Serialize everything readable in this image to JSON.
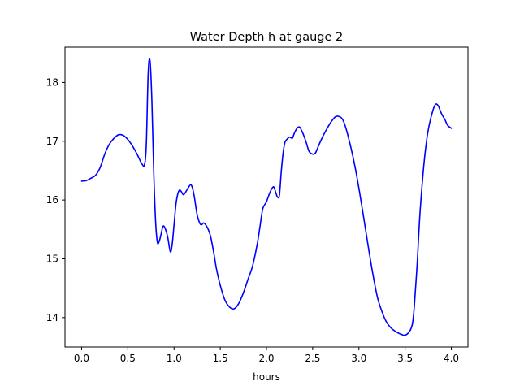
{
  "chart_data": {
    "type": "line",
    "title": "Water Depth h at gauge 2",
    "xlabel": "hours",
    "ylabel": "",
    "xlim": [
      -0.18,
      4.18
    ],
    "ylim": [
      13.5,
      18.6
    ],
    "xticks": [
      0.0,
      0.5,
      1.0,
      1.5,
      2.0,
      2.5,
      3.0,
      3.5,
      4.0
    ],
    "xtick_labels": [
      "0.0",
      "0.5",
      "1.0",
      "1.5",
      "2.0",
      "2.5",
      "3.0",
      "3.5",
      "4.0"
    ],
    "yticks": [
      14,
      15,
      16,
      17,
      18
    ],
    "ytick_labels": [
      "14",
      "15",
      "16",
      "17",
      "18"
    ],
    "grid": false,
    "legend": "none",
    "colors": {
      "line": "#0000ff",
      "axes": "#000000",
      "background": "#ffffff"
    },
    "series": [
      {
        "color": "#0000ff",
        "x": [
          0.0,
          0.05,
          0.1,
          0.15,
          0.2,
          0.25,
          0.3,
          0.35,
          0.4,
          0.45,
          0.5,
          0.55,
          0.6,
          0.65,
          0.68,
          0.7,
          0.72,
          0.74,
          0.76,
          0.78,
          0.8,
          0.82,
          0.84,
          0.86,
          0.88,
          0.9,
          0.93,
          0.96,
          0.98,
          1.0,
          1.02,
          1.04,
          1.06,
          1.08,
          1.1,
          1.12,
          1.15,
          1.18,
          1.2,
          1.22,
          1.25,
          1.28,
          1.3,
          1.32,
          1.35,
          1.38,
          1.4,
          1.43,
          1.46,
          1.5,
          1.55,
          1.6,
          1.65,
          1.7,
          1.75,
          1.8,
          1.85,
          1.9,
          1.93,
          1.96,
          2.0,
          2.03,
          2.06,
          2.08,
          2.1,
          2.12,
          2.14,
          2.16,
          2.18,
          2.2,
          2.22,
          2.25,
          2.28,
          2.3,
          2.33,
          2.36,
          2.38,
          2.4,
          2.43,
          2.46,
          2.5,
          2.53,
          2.56,
          2.6,
          2.65,
          2.7,
          2.75,
          2.8,
          2.83,
          2.86,
          2.9,
          2.95,
          3.0,
          3.05,
          3.1,
          3.15,
          3.2,
          3.25,
          3.3,
          3.35,
          3.4,
          3.45,
          3.5,
          3.55,
          3.58,
          3.6,
          3.63,
          3.66,
          3.7,
          3.73,
          3.76,
          3.8,
          3.83,
          3.86,
          3.88,
          3.9,
          3.93,
          3.96,
          4.0
        ],
        "y": [
          16.32,
          16.33,
          16.37,
          16.42,
          16.55,
          16.78,
          16.95,
          17.05,
          17.11,
          17.1,
          17.03,
          16.92,
          16.78,
          16.62,
          16.6,
          16.95,
          18.15,
          18.37,
          17.7,
          16.5,
          15.65,
          15.28,
          15.3,
          15.42,
          15.55,
          15.53,
          15.38,
          15.12,
          15.25,
          15.58,
          15.92,
          16.1,
          16.17,
          16.14,
          16.09,
          16.12,
          16.2,
          16.26,
          16.2,
          16.05,
          15.75,
          15.6,
          15.58,
          15.61,
          15.56,
          15.46,
          15.35,
          15.1,
          14.82,
          14.55,
          14.3,
          14.18,
          14.15,
          14.24,
          14.42,
          14.65,
          14.88,
          15.25,
          15.55,
          15.85,
          15.97,
          16.1,
          16.2,
          16.22,
          16.13,
          16.05,
          16.08,
          16.48,
          16.8,
          16.98,
          17.03,
          17.07,
          17.05,
          17.13,
          17.22,
          17.24,
          17.18,
          17.11,
          16.98,
          16.83,
          16.78,
          16.8,
          16.91,
          17.05,
          17.2,
          17.33,
          17.42,
          17.41,
          17.35,
          17.22,
          16.98,
          16.63,
          16.2,
          15.72,
          15.22,
          14.75,
          14.35,
          14.1,
          13.92,
          13.82,
          13.76,
          13.72,
          13.7,
          13.77,
          13.9,
          14.2,
          14.9,
          15.75,
          16.55,
          16.98,
          17.27,
          17.52,
          17.63,
          17.6,
          17.52,
          17.45,
          17.37,
          17.27,
          17.22
        ]
      }
    ]
  }
}
